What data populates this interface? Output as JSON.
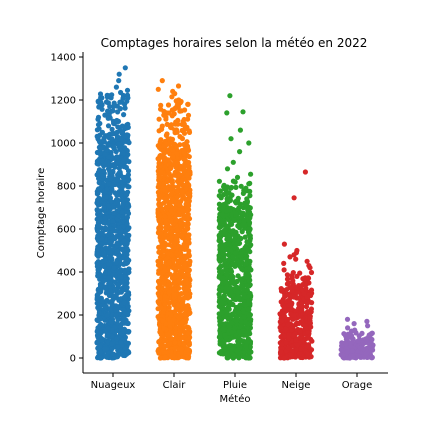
{
  "chart_data": {
    "type": "scatter",
    "subtype": "strip",
    "title": "Comptages horaires selon la météo en 2022",
    "xlabel": "Météo",
    "ylabel": "Comptage horaire",
    "ylim": [
      -60,
      1420
    ],
    "yticks": [
      0,
      200,
      400,
      600,
      800,
      1000,
      1200,
      1400
    ],
    "grid": false,
    "categories": [
      "Nuageux",
      "Clair",
      "Pluie",
      "Neige",
      "Orage"
    ],
    "series": [
      {
        "category": "Nuageux",
        "color": "#1f77b4",
        "dense_max": 1050,
        "sparse_max": 1230,
        "outliers": [
          1350,
          1320,
          1290,
          1260,
          1245,
          1235,
          1220,
          1210,
          1190,
          1180,
          1170,
          1150,
          1130,
          1115,
          1100,
          1085,
          1070
        ]
      },
      {
        "category": "Clair",
        "color": "#ff7f0e",
        "dense_max": 1000,
        "sparse_max": 1200,
        "outliers": [
          1290,
          1265,
          1250,
          1240,
          1230,
          1215,
          1200,
          1180,
          1160,
          1140,
          1120,
          1100,
          1085,
          1070,
          1050,
          1030,
          1015
        ]
      },
      {
        "category": "Pluie",
        "color": "#2ca02c",
        "dense_max": 700,
        "sparse_max": 830,
        "outliers": [
          1220,
          1145,
          1140,
          1060,
          1020,
          1000,
          960,
          910,
          880,
          855,
          840,
          810,
          790,
          775,
          760,
          745,
          730
        ]
      },
      {
        "category": "Neige",
        "color": "#d62728",
        "dense_max": 320,
        "sparse_max": 400,
        "outliers": [
          865,
          745,
          530,
          500,
          490,
          480,
          470,
          460,
          450,
          440,
          430,
          420,
          410,
          395
        ]
      },
      {
        "category": "Orage",
        "color": "#9467bd",
        "dense_max": 90,
        "sparse_max": 120,
        "outliers": [
          180,
          170,
          160,
          150,
          140,
          130,
          125
        ]
      }
    ]
  }
}
